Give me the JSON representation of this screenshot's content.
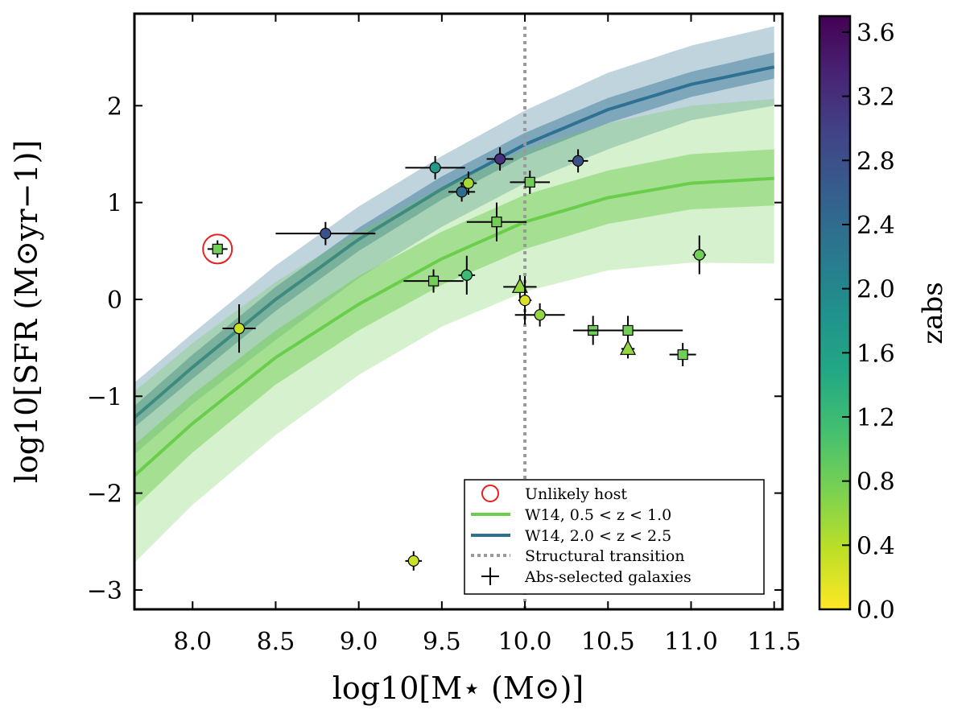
{
  "chart_data": {
    "type": "scatter",
    "xlabel": "log10[M⋆ (M⊙)]",
    "ylabel": "log10[SFR (M⊙yr−1)]",
    "xlim": [
      7.65,
      11.55
    ],
    "ylim": [
      -3.2,
      2.95
    ],
    "xticks": [
      8.0,
      8.5,
      9.0,
      9.5,
      10.0,
      10.5,
      11.0,
      11.5
    ],
    "xtick_labels": [
      "8.0",
      "8.5",
      "9.0",
      "9.5",
      "10.0",
      "10.5",
      "11.0",
      "11.5"
    ],
    "yticks": [
      -3,
      -2,
      -1,
      0,
      1,
      2
    ],
    "ytick_labels": [
      "−3",
      "−2",
      "−1",
      "0",
      "1",
      "2"
    ],
    "vline": {
      "x": 10.0,
      "label": "Structural transition",
      "color": "#999999"
    },
    "bands": [
      {
        "name": "W14, 2.0 < z < 2.5",
        "color": "#2f7193",
        "x": [
          7.65,
          8.0,
          8.5,
          9.0,
          9.5,
          10.0,
          10.5,
          11.0,
          11.5
        ],
        "center": [
          -1.22,
          -0.7,
          0.0,
          0.62,
          1.14,
          1.6,
          1.96,
          2.22,
          2.4
        ],
        "inner_lower": [
          -1.32,
          -0.82,
          -0.12,
          0.5,
          1.03,
          1.48,
          1.82,
          2.09,
          2.28
        ],
        "inner_upper": [
          -1.1,
          -0.57,
          0.13,
          0.74,
          1.27,
          1.72,
          2.08,
          2.35,
          2.55
        ],
        "outer_lower": [
          -1.6,
          -1.08,
          -0.42,
          0.22,
          0.75,
          1.2,
          1.55,
          1.85,
          2.0
        ],
        "outer_upper": [
          -0.86,
          -0.35,
          0.35,
          0.96,
          1.48,
          1.95,
          2.34,
          2.62,
          2.82
        ]
      },
      {
        "name": "W14, 0.5 < z < 1.0",
        "color": "#6acd4c",
        "x": [
          7.65,
          8.0,
          8.5,
          9.0,
          9.5,
          10.0,
          10.5,
          11.0,
          11.5
        ],
        "center": [
          -1.82,
          -1.28,
          -0.6,
          -0.05,
          0.42,
          0.8,
          1.05,
          1.2,
          1.25
        ],
        "inner_lower": [
          -2.15,
          -1.58,
          -0.88,
          -0.32,
          0.15,
          0.52,
          0.78,
          0.93,
          0.97
        ],
        "inner_upper": [
          -1.5,
          -0.98,
          -0.32,
          0.24,
          0.7,
          1.08,
          1.33,
          1.5,
          1.55
        ],
        "outer_lower": [
          -2.72,
          -2.12,
          -1.4,
          -0.78,
          -0.28,
          0.08,
          0.3,
          0.38,
          0.37
        ],
        "outer_upper": [
          -0.95,
          -0.45,
          0.18,
          0.7,
          1.16,
          1.55,
          1.82,
          2.0,
          2.07
        ]
      }
    ],
    "points": [
      {
        "x": 8.15,
        "y": 0.52,
        "z": 0.8,
        "marker": "square",
        "xerr": 0.06,
        "yerr": 0.09
      },
      {
        "x": 8.28,
        "y": -0.3,
        "z": 0.3,
        "marker": "circle",
        "xerr": 0.1,
        "yerr": 0.25
      },
      {
        "x": 8.8,
        "y": 0.68,
        "z": 2.8,
        "marker": "circle",
        "xerr": 0.3,
        "yerr": 0.12
      },
      {
        "x": 9.33,
        "y": -2.7,
        "z": 0.3,
        "marker": "circle",
        "xerr": 0.05,
        "yerr": 0.1
      },
      {
        "x": 9.45,
        "y": 0.19,
        "z": 0.8,
        "marker": "square",
        "xerr": 0.18,
        "yerr": 0.12
      },
      {
        "x": 9.46,
        "y": 1.36,
        "z": 1.7,
        "marker": "circle",
        "xerr": 0.18,
        "yerr": 0.12
      },
      {
        "x": 9.62,
        "y": 1.11,
        "z": 2.4,
        "marker": "circle",
        "xerr": 0.08,
        "yerr": 0.1
      },
      {
        "x": 9.65,
        "y": 0.25,
        "z": 1.2,
        "marker": "circle",
        "xerr": 0.05,
        "yerr": 0.2
      },
      {
        "x": 9.66,
        "y": 1.2,
        "z": 0.5,
        "marker": "circle",
        "xerr": 0.05,
        "yerr": 0.12
      },
      {
        "x": 9.83,
        "y": 0.8,
        "z": 0.8,
        "marker": "square",
        "xerr": 0.18,
        "yerr": 0.2
      },
      {
        "x": 9.85,
        "y": 1.45,
        "z": 3.2,
        "marker": "circle",
        "xerr": 0.08,
        "yerr": 0.12
      },
      {
        "x": 9.97,
        "y": 0.13,
        "z": 0.6,
        "marker": "triangle",
        "xerr": 0.1,
        "yerr": 0.12
      },
      {
        "x": 10.0,
        "y": -0.01,
        "z": 0.2,
        "marker": "circle",
        "xerr": 0.04,
        "yerr": 0.25
      },
      {
        "x": 10.03,
        "y": 1.21,
        "z": 0.8,
        "marker": "square",
        "xerr": 0.12,
        "yerr": 0.12
      },
      {
        "x": 10.09,
        "y": -0.16,
        "z": 0.6,
        "marker": "circle",
        "xerr": 0.15,
        "yerr": 0.12
      },
      {
        "x": 10.32,
        "y": 1.43,
        "z": 2.8,
        "marker": "circle",
        "xerr": 0.06,
        "yerr": 0.12
      },
      {
        "x": 10.41,
        "y": -0.32,
        "z": 0.8,
        "marker": "square",
        "xerr": 0.1,
        "yerr": 0.15
      },
      {
        "x": 10.62,
        "y": -0.32,
        "z": 0.8,
        "marker": "square",
        "xerr": 0.33,
        "yerr": 0.15
      },
      {
        "x": 10.62,
        "y": -0.51,
        "z": 0.6,
        "marker": "triangle",
        "xerr": 0.04,
        "yerr": 0.1
      },
      {
        "x": 10.95,
        "y": -0.57,
        "z": 0.8,
        "marker": "square",
        "xerr": 0.08,
        "yerr": 0.12
      },
      {
        "x": 11.05,
        "y": 0.46,
        "z": 0.8,
        "marker": "circle",
        "xerr": 0.04,
        "yerr": 0.2
      }
    ],
    "unlikely_host": {
      "x": 8.15,
      "y": 0.52,
      "color": "#e8201e"
    },
    "legend": {
      "position": "lower-right",
      "entries": [
        "Unlikely host",
        "W14, 0.5 < z < 1.0",
        "W14, 2.0 < z < 2.5",
        "Structural transition",
        "Abs-selected galaxies"
      ]
    },
    "colorbar": {
      "label": "zabs",
      "colormap": "viridis",
      "range": [
        0.0,
        3.7
      ],
      "ticks": [
        0.0,
        0.4,
        0.8,
        1.2,
        1.6,
        2.0,
        2.4,
        2.8,
        3.2,
        3.6
      ],
      "tick_labels": [
        "0.0",
        "0.4",
        "0.8",
        "1.2",
        "1.6",
        "2.0",
        "2.4",
        "2.8",
        "3.2",
        "3.6"
      ]
    }
  }
}
